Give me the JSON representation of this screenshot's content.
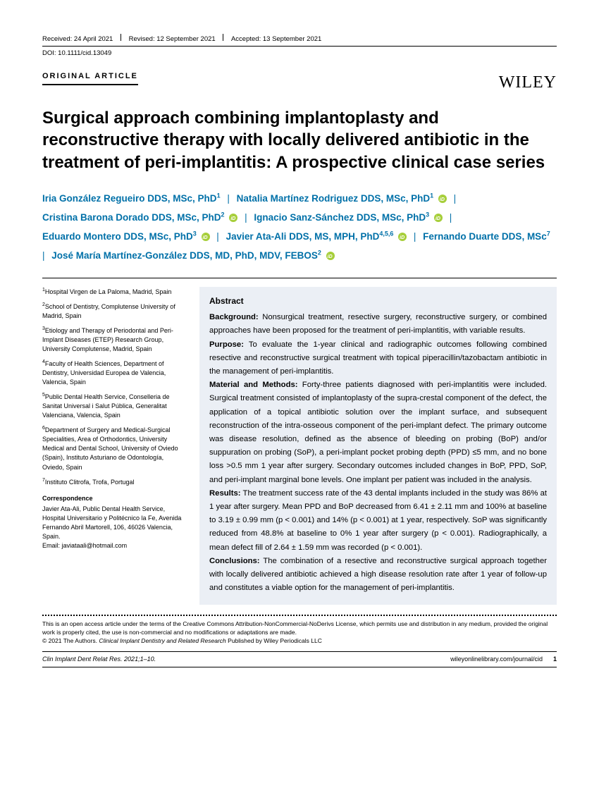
{
  "header": {
    "received": "Received: 24 April 2021",
    "revised": "Revised: 12 September 2021",
    "accepted": "Accepted: 13 September 2021",
    "doi": "DOI: 10.1111/cid.13049",
    "article_type": "ORIGINAL ARTICLE",
    "publisher": "WILEY"
  },
  "title": "Surgical approach combining implantoplasty and reconstructive therapy with locally delivered antibiotic in the treatment of peri-implantitis: A prospective clinical case series",
  "authors": [
    {
      "name": "Iria González Regueiro DDS, MSc, PhD",
      "aff": "1",
      "orcid": false
    },
    {
      "name": "Natalia Martínez Rodriguez DDS, MSc, PhD",
      "aff": "1",
      "orcid": true
    },
    {
      "name": "Cristina Barona Dorado DDS, MSc, PhD",
      "aff": "2",
      "orcid": true
    },
    {
      "name": "Ignacio Sanz-Sánchez DDS, MSc, PhD",
      "aff": "3",
      "orcid": true
    },
    {
      "name": "Eduardo Montero DDS, MSc, PhD",
      "aff": "3",
      "orcid": true
    },
    {
      "name": "Javier Ata-Ali DDS, MS, MPH, PhD",
      "aff": "4,5,6",
      "orcid": true
    },
    {
      "name": "Fernando Duarte DDS, MSc",
      "aff": "7",
      "orcid": false
    },
    {
      "name": "José María Martínez-González DDS, MD, PhD, MDV, FEBOS",
      "aff": "2",
      "orcid": true
    }
  ],
  "affiliations": [
    {
      "num": "1",
      "text": "Hospital Virgen de La Paloma, Madrid, Spain"
    },
    {
      "num": "2",
      "text": "School of Dentistry, Complutense University of Madrid, Spain"
    },
    {
      "num": "3",
      "text": "Etiology and Therapy of Periodontal and Peri-Implant Diseases (ETEP) Research Group, University Complutense, Madrid, Spain"
    },
    {
      "num": "4",
      "text": "Faculty of Health Sciences, Department of Dentistry, Universidad Europea de Valencia, Valencia, Spain"
    },
    {
      "num": "5",
      "text": "Public Dental Health Service, Conselleria de Sanitat Universal i Salut Pública, Generalitat Valenciana, Valencia, Spain"
    },
    {
      "num": "6",
      "text": "Department of Surgery and Medical-Surgical Specialities, Area of Orthodontics, University Medical and Dental School, University of Oviedo (Spain), Instituto Asturiano de Odontología, Oviedo, Spain"
    },
    {
      "num": "7",
      "text": "Instituto Clitrofa, Trofa, Portugal"
    }
  ],
  "correspondence": {
    "heading": "Correspondence",
    "text": "Javier Ata-Ali, Public Dental Health Service, Hospital Universitario y Politécnico la Fe, Avenida Fernando Abril Martorell, 106, 46026 Valencia, Spain.",
    "email": "Email: javiataali@hotmail.com"
  },
  "abstract": {
    "heading": "Abstract",
    "background_label": "Background:",
    "background": " Nonsurgical treatment, resective surgery, reconstructive surgery, or combined approaches have been proposed for the treatment of peri-implantitis, with variable results.",
    "purpose_label": "Purpose:",
    "purpose": " To evaluate the 1-year clinical and radiographic outcomes following combined resective and reconstructive surgical treatment with topical piperacillin/tazobactam antibiotic in the management of peri-implantitis.",
    "methods_label": "Material and Methods:",
    "methods": " Forty-three patients diagnosed with peri-implantitis were included. Surgical treatment consisted of implantoplasty of the supra-crestal component of the defect, the application of a topical antibiotic solution over the implant surface, and subsequent reconstruction of the intra-osseous component of the peri-implant defect. The primary outcome was disease resolution, defined as the absence of bleeding on probing (BoP) and/or suppuration on probing (SoP), a peri-implant pocket probing depth (PPD) ≤5 mm, and no bone loss >0.5 mm 1 year after surgery. Secondary outcomes included changes in BoP, PPD, SoP, and peri-implant marginal bone levels. One implant per patient was included in the analysis.",
    "results_label": "Results:",
    "results": " The treatment success rate of the 43 dental implants included in the study was 86% at 1 year after surgery. Mean PPD and BoP decreased from 6.41 ± 2.11 mm and 100% at baseline to 3.19 ± 0.99 mm (p < 0.001) and 14% (p < 0.001) at 1 year, respectively. SoP was significantly reduced from 48.8% at baseline to 0% 1 year after surgery (p < 0.001). Radiographically, a mean defect fill of 2.64 ± 1.59 mm was recorded (p < 0.001).",
    "conclusions_label": "Conclusions:",
    "conclusions": " The combination of a resective and reconstructive surgical approach together with locally delivered antibiotic achieved a high disease resolution rate after 1 year of follow-up and constitutes a viable option for the management of peri-implantitis."
  },
  "license": {
    "line1": "This is an open access article under the terms of the Creative Commons Attribution-NonCommercial-NoDerivs License, which permits use and distribution in any medium, provided the original work is properly cited, the use is non-commercial and no modifications or adaptations are made.",
    "line2_prefix": "© 2021 The Authors. ",
    "line2_journal": "Clinical Implant Dentistry and Related Research",
    "line2_suffix": " Published by Wiley Periodicals LLC"
  },
  "footer": {
    "citation": "Clin Implant Dent Relat Res. 2021;1–10.",
    "url": "wileyonlinelibrary.com/journal/cid",
    "page": "1"
  }
}
